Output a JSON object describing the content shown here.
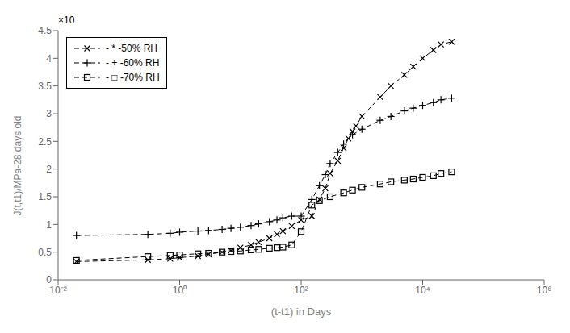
{
  "chart_data": {
    "type": "line",
    "title": "",
    "x_label": "(t-t1) in Days",
    "y_label": "J(t,t1)/MPa-28 days old",
    "log": "x",
    "xlim": [
      0.01,
      1000000
    ],
    "xticks": [
      {
        "value": 0.01,
        "label": "10⁻²"
      },
      {
        "value": 1,
        "label": "10⁰"
      },
      {
        "value": 100,
        "label": "10²"
      },
      {
        "value": 10000,
        "label": "10⁴"
      },
      {
        "value": 1000000,
        "label": "10⁶"
      }
    ],
    "ylim": [
      0,
      4.5
    ],
    "yticks": [
      0,
      0.5,
      1,
      1.5,
      2,
      2.5,
      3,
      3.5,
      4,
      4.5
    ],
    "grid": false,
    "legend": "upper left",
    "annotations": [
      "×10"
    ],
    "series": [
      {
        "name": "- * -50% RH",
        "color": "#000000",
        "marker": "x",
        "line_style": "dashed",
        "x": [
          0.02,
          0.3,
          0.7,
          1.0,
          2.0,
          3.0,
          5.0,
          7.0,
          10.0,
          15.0,
          20.0,
          30.0,
          40.0,
          50.0,
          70.0,
          100.0,
          150.0,
          200.0,
          250.0,
          300.0,
          400.0,
          500.0,
          600.0,
          700.0,
          800.0,
          1000.0,
          2000.0,
          3000.0,
          5000.0,
          7000.0,
          10000.0,
          15000.0,
          20000.0,
          30000.0
        ],
        "values": [
          0.33,
          0.36,
          0.38,
          0.4,
          0.43,
          0.46,
          0.5,
          0.53,
          0.58,
          0.63,
          0.68,
          0.75,
          0.82,
          0.88,
          0.97,
          1.08,
          1.15,
          1.45,
          1.65,
          1.92,
          2.15,
          2.38,
          2.55,
          2.68,
          2.78,
          2.95,
          3.3,
          3.5,
          3.7,
          3.85,
          4.0,
          4.15,
          4.25,
          4.3
        ]
      },
      {
        "name": "- + -60% RH",
        "color": "#000000",
        "marker": "plus",
        "line_style": "dashed",
        "x": [
          0.02,
          0.3,
          0.7,
          1.0,
          2.0,
          3.0,
          5.0,
          7.0,
          10.0,
          15.0,
          20.0,
          30.0,
          40.0,
          50.0,
          70.0,
          100.0,
          150.0,
          200.0,
          250.0,
          300.0,
          400.0,
          500.0,
          700.0,
          1000.0,
          2000.0,
          3000.0,
          5000.0,
          7000.0,
          10000.0,
          15000.0,
          20000.0,
          30000.0
        ],
        "values": [
          0.8,
          0.82,
          0.84,
          0.86,
          0.88,
          0.89,
          0.91,
          0.93,
          0.95,
          0.98,
          1.01,
          1.05,
          1.08,
          1.12,
          1.15,
          1.15,
          1.45,
          1.7,
          1.9,
          2.1,
          2.3,
          2.45,
          2.62,
          2.72,
          2.88,
          2.95,
          3.05,
          3.1,
          3.15,
          3.2,
          3.25,
          3.28
        ]
      },
      {
        "name": "- □ -70% RH",
        "color": "#000000",
        "marker": "square",
        "line_style": "dashed",
        "x": [
          0.02,
          0.3,
          0.7,
          1.0,
          2.0,
          3.0,
          5.0,
          7.0,
          10.0,
          15.0,
          20.0,
          30.0,
          40.0,
          50.0,
          70.0,
          100.0,
          150.0,
          200.0,
          300.0,
          500.0,
          700.0,
          1000.0,
          2000.0,
          3000.0,
          5000.0,
          7000.0,
          10000.0,
          15000.0,
          20000.0,
          30000.0
        ],
        "values": [
          0.35,
          0.42,
          0.44,
          0.45,
          0.47,
          0.48,
          0.5,
          0.51,
          0.52,
          0.54,
          0.55,
          0.57,
          0.58,
          0.59,
          0.63,
          0.87,
          1.35,
          1.43,
          1.5,
          1.57,
          1.62,
          1.67,
          1.73,
          1.77,
          1.8,
          1.82,
          1.85,
          1.88,
          1.92,
          1.95
        ]
      }
    ]
  }
}
